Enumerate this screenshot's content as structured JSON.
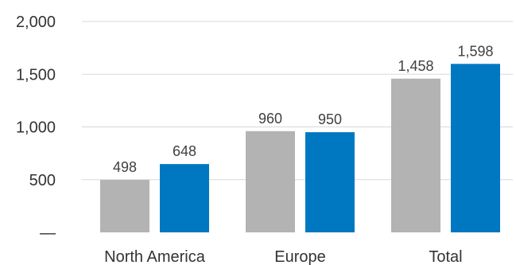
{
  "chart_data": {
    "type": "bar",
    "title": "",
    "xlabel": "",
    "ylabel": "",
    "categories": [
      "North America",
      "Europe",
      "Total"
    ],
    "series": [
      {
        "values": [
          498,
          960,
          1458
        ],
        "color": "#b3b3b3"
      },
      {
        "values": [
          648,
          950,
          1598
        ],
        "color": "#0078c1"
      }
    ],
    "data_labels": [
      [
        "498",
        "960",
        "1,458"
      ],
      [
        "648",
        "950",
        "1,598"
      ]
    ],
    "ylim": [
      0,
      2000
    ],
    "yticks": [
      {
        "value": 0,
        "label": "—"
      },
      {
        "value": 500,
        "label": "500"
      },
      {
        "value": 1000,
        "label": "1,000"
      },
      {
        "value": 1500,
        "label": "1,500"
      },
      {
        "value": 2000,
        "label": "2,000"
      }
    ],
    "grid": true,
    "legend": "none"
  }
}
